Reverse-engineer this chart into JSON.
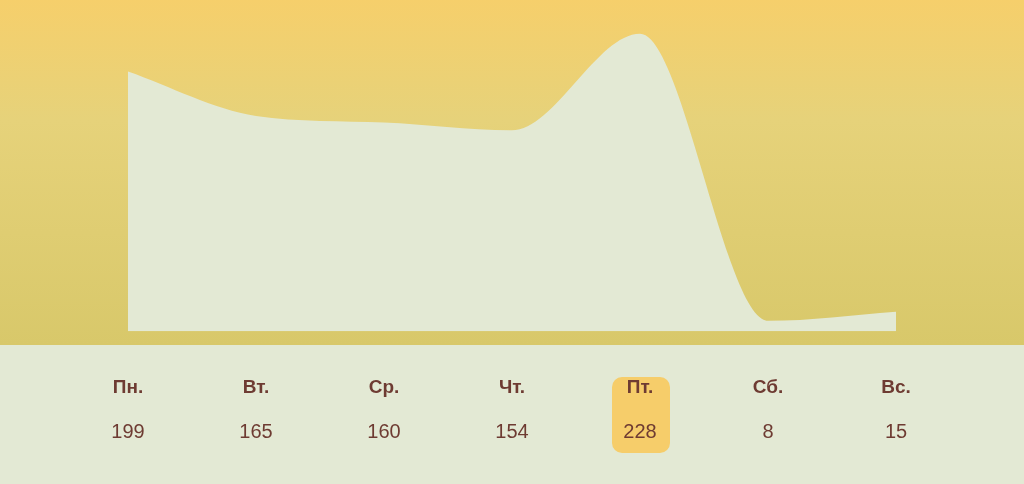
{
  "chart_data": {
    "type": "area",
    "categories": [
      "Пн.",
      "Вт.",
      "Ср.",
      "Чт.",
      "Пт.",
      "Сб.",
      "Вс."
    ],
    "values": [
      199,
      165,
      160,
      154,
      228,
      8,
      15
    ],
    "color": "#e3e9d4",
    "data_labels": true,
    "grid": false,
    "legend": false
  }
}
